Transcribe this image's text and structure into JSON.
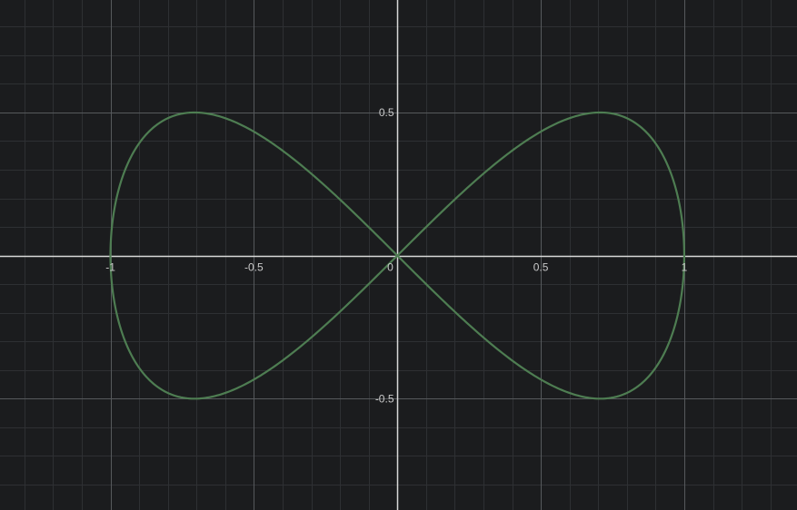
{
  "chart_data": {
    "type": "line",
    "title": "",
    "xlabel": "",
    "ylabel": "",
    "xlim": [
      -1.385,
      1.393
    ],
    "ylim": [
      -0.889,
      0.893
    ],
    "grid": true,
    "minor_grid_step": 0.1,
    "major_grid_step": 0.5,
    "x_tick_labels": [
      "-1",
      "-0.5",
      "0",
      "0.5",
      "1"
    ],
    "y_tick_labels": [
      "0.5",
      "-0.5"
    ],
    "x_ticks": [
      -1,
      -0.5,
      0,
      0.5,
      1
    ],
    "y_ticks": [
      0.5,
      -0.5
    ],
    "series": [
      {
        "curve": "lemniscate of Gerono",
        "x_of_t": "cos(t)",
        "y_of_t": "sin(t)*cos(t)",
        "t_range": [
          0,
          6.2832
        ],
        "color": "#4e7d52",
        "points": [
          [
            1,
            0
          ],
          [
            0.924,
            0.354
          ],
          [
            0.707,
            0.5
          ],
          [
            0.383,
            0.354
          ],
          [
            0,
            0
          ],
          [
            -0.383,
            -0.354
          ],
          [
            -0.707,
            -0.5
          ],
          [
            -0.924,
            -0.354
          ],
          [
            -1,
            0
          ],
          [
            -0.924,
            0.354
          ],
          [
            -0.707,
            0.5
          ],
          [
            -0.383,
            0.354
          ],
          [
            0,
            0
          ],
          [
            0.383,
            -0.354
          ],
          [
            0.707,
            -0.5
          ],
          [
            0.924,
            -0.354
          ],
          [
            1,
            0
          ]
        ]
      }
    ]
  },
  "colors": {
    "background": "#1b1c1e",
    "minor_grid": "#2e3033",
    "major_grid": "#56595c",
    "axis": "#d9d9d9",
    "curve": "#4e7d52"
  }
}
